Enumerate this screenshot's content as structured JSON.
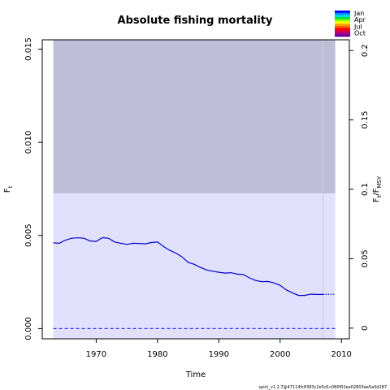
{
  "chart_data": {
    "type": "line",
    "title": "Absolute fishing mortality",
    "xlabel": "Time",
    "ylabel_left": {
      "main": "F",
      "sub": "t"
    },
    "ylabel_right": {
      "main": "F",
      "sub1": "t",
      "sep": "/F",
      "sub2": "MSY"
    },
    "xlim": [
      1961.2,
      2011.3
    ],
    "ylim": [
      -0.00055,
      0.0155
    ],
    "ylim_right": [
      -0.0077,
      0.2077
    ],
    "x_ticks": [
      1970,
      1980,
      1990,
      2000,
      2010
    ],
    "y_ticks": [
      0.0,
      0.005,
      0.01,
      0.015
    ],
    "y_tick_labels": [
      "0.000",
      "0.005",
      "0.010",
      "0.015"
    ],
    "y_right_ticks": [
      0,
      0.05,
      0.1,
      0.15,
      0.2
    ],
    "y_right_tick_labels": [
      "0",
      "0.05",
      "0.1",
      "0.15",
      "0.2"
    ],
    "fmsy_band": {
      "x_start": 1963,
      "x_end": 2009,
      "y_low": -0.00055,
      "y_high": 0.00725
    },
    "upper_band": {
      "x_start": 1963,
      "x_end": 2009,
      "y_low": 0.00725,
      "y_high": 0.0155
    },
    "vline_x": 2007,
    "zero_line_y": 0,
    "series": [
      {
        "style": "solid",
        "x": [
          1963,
          1964,
          1965,
          1966,
          1967,
          1968,
          1969,
          1970,
          1971,
          1972,
          1973,
          1974,
          1975,
          1976,
          1977,
          1978,
          1979,
          1980,
          1981,
          1982,
          1983,
          1984,
          1985,
          1986,
          1987,
          1988,
          1989,
          1990,
          1991,
          1992,
          1993,
          1994,
          1995,
          1996,
          1997,
          1998,
          1999,
          2000,
          2001,
          2002,
          2003,
          2004,
          2005,
          2006,
          2007
        ],
        "y": [
          0.0046,
          0.00458,
          0.00475,
          0.00485,
          0.00487,
          0.00485,
          0.0047,
          0.00468,
          0.00488,
          0.00485,
          0.00465,
          0.00458,
          0.00452,
          0.00458,
          0.00457,
          0.00455,
          0.00462,
          0.00465,
          0.0044,
          0.0042,
          0.00405,
          0.00385,
          0.00355,
          0.00345,
          0.00328,
          0.00315,
          0.00308,
          0.00302,
          0.00298,
          0.003,
          0.00292,
          0.0029,
          0.00272,
          0.00258,
          0.00252,
          0.00253,
          0.00245,
          0.00232,
          0.00208,
          0.00192,
          0.00178,
          0.00178,
          0.00185,
          0.00183,
          0.00183
        ]
      },
      {
        "style": "dotted",
        "x": [
          2007,
          2008,
          2009
        ],
        "y": [
          0.00183,
          0.00184,
          0.00184
        ]
      }
    ],
    "legend": {
      "position": "top-right",
      "labels": [
        "Jan",
        "Apr",
        "Jul",
        "Oct"
      ],
      "colors": [
        "#0000ff",
        "#0088ff",
        "#00dddd",
        "#00dd44",
        "#88ff00",
        "#ffff00",
        "#ffaa00",
        "#ff6600",
        "#ff0000",
        "#dd0044",
        "#aa0088",
        "#660099"
      ]
    },
    "colors": {
      "upper_band": "#bebed9",
      "fmsy_band": "#e1e1fe",
      "line": "#0000cc",
      "zero_line": "#3333ff",
      "vline": "#c8c8e0"
    }
  },
  "footer": "spict_v1.2.7@47114fc8383c2e5d1c080f02ee02803ee5a0d287"
}
